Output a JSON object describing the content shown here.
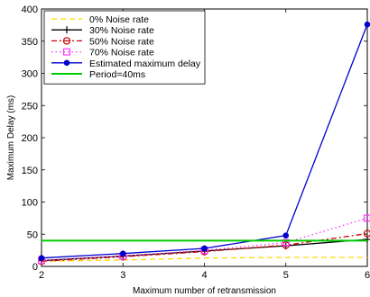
{
  "chart_data": {
    "type": "line",
    "xlabel": "Maximum number of retransmission",
    "ylabel": "Maximum Delay (ms)",
    "xlim": [
      2,
      6
    ],
    "ylim": [
      0,
      400
    ],
    "xticks": [
      2,
      3,
      4,
      5,
      6
    ],
    "yticks": [
      0,
      50,
      100,
      150,
      200,
      250,
      300,
      350,
      400
    ],
    "grid": false,
    "legend_position": "top-left",
    "x": [
      2,
      3,
      4,
      5,
      6
    ],
    "series": [
      {
        "name": "0% Noise rate",
        "values": [
          8,
          10,
          13,
          14,
          14
        ],
        "color": "#ffd700",
        "dash": "6,4",
        "marker": "none"
      },
      {
        "name": "30% Noise rate",
        "values": [
          9,
          16,
          24,
          32,
          42
        ],
        "color": "#000000",
        "dash": "",
        "marker": "plus"
      },
      {
        "name": "50% Noise rate",
        "values": [
          8,
          15,
          23,
          33,
          51
        ],
        "color": "#cc0000",
        "dash": "6,3,2,3",
        "marker": "circle"
      },
      {
        "name": "70% Noise rate",
        "values": [
          9,
          16,
          25,
          37,
          75
        ],
        "color": "#ff33ff",
        "dash": "1.5,3",
        "marker": "square"
      },
      {
        "name": "Estimated maximum delay",
        "values": [
          13,
          20,
          28,
          48,
          376
        ],
        "color": "#0000cc",
        "dash": "",
        "marker": "dot"
      },
      {
        "name": "Period=40ms",
        "values": [
          40,
          40,
          40,
          40,
          40
        ],
        "color": "#00cc00",
        "dash": "",
        "marker": "none",
        "width": 2
      }
    ]
  }
}
